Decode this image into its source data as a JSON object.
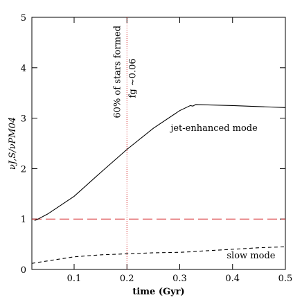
{
  "chart_data": {
    "type": "line",
    "xlabel": "time (Gyr)",
    "ylabel": "νJ,S/νPM04",
    "xlim": [
      0.02,
      0.5
    ],
    "ylim": [
      0,
      5
    ],
    "xticks": [
      0.1,
      0.2,
      0.3,
      0.4,
      0.5
    ],
    "yticks": [
      0,
      1,
      2,
      3,
      4,
      5
    ],
    "series": [
      {
        "name": "jet-enhanced mode",
        "color": "#000000",
        "dash": "solid",
        "x": [
          0.025,
          0.03,
          0.05,
          0.1,
          0.15,
          0.2,
          0.25,
          0.3,
          0.32,
          0.325,
          0.33,
          0.4,
          0.5
        ],
        "values": [
          0.97,
          0.99,
          1.1,
          1.45,
          1.92,
          2.38,
          2.8,
          3.15,
          3.25,
          3.24,
          3.27,
          3.25,
          3.21
        ]
      },
      {
        "name": "slow mode",
        "color": "#000000",
        "dash": "dashed",
        "x": [
          0.02,
          0.05,
          0.1,
          0.15,
          0.2,
          0.25,
          0.3,
          0.32,
          0.35,
          0.4,
          0.45,
          0.5
        ],
        "values": [
          0.12,
          0.17,
          0.25,
          0.29,
          0.31,
          0.33,
          0.34,
          0.35,
          0.37,
          0.4,
          0.43,
          0.45
        ]
      }
    ],
    "hline": {
      "y": 1,
      "color": "#d62728"
    },
    "vline": {
      "x": 0.2,
      "color": "#d62728"
    },
    "annotations": [
      "60% of stars formed",
      "fg ~0.06"
    ]
  }
}
